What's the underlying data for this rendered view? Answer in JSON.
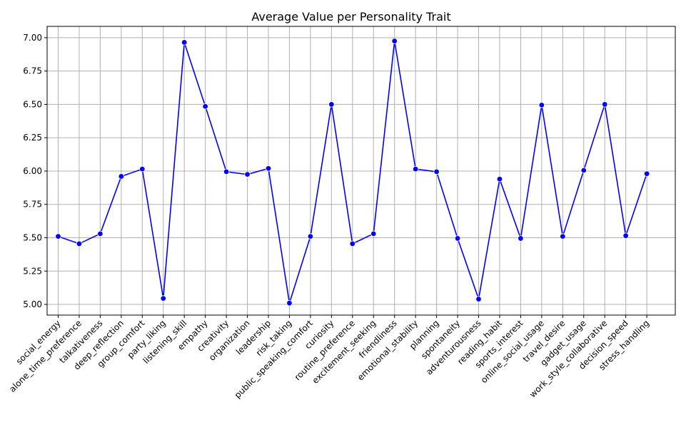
{
  "chart_data": {
    "type": "line",
    "title": "Average Value per Personality Trait",
    "xlabel": "",
    "ylabel": "",
    "grid": true,
    "ylim": [
      4.92,
      7.085
    ],
    "yticks": [
      "5.00",
      "5.25",
      "5.50",
      "5.75",
      "6.00",
      "6.25",
      "6.50",
      "6.75",
      "7.00"
    ],
    "line_color": "#0000ff",
    "categories": [
      "social_energy",
      "alone_time_preference",
      "talkativeness",
      "deep_reflection",
      "group_comfort",
      "party_liking",
      "listening_skill",
      "empathy",
      "creativity",
      "organization",
      "leadership",
      "risk_taking",
      "public_speaking_comfort",
      "curiosity",
      "routine_preference",
      "excitement_seeking",
      "friendliness",
      "emotional_stability",
      "planning",
      "spontaneity",
      "adventurousness",
      "reading_habit",
      "sports_interest",
      "online_social_usage",
      "travel_desire",
      "gadget_usage",
      "work_style_collaborative",
      "decision_speed",
      "stress_handling"
    ],
    "values": [
      5.51,
      5.455,
      5.53,
      5.96,
      6.015,
      5.045,
      6.965,
      6.485,
      5.995,
      5.975,
      6.02,
      5.01,
      5.51,
      6.5,
      5.455,
      5.53,
      6.975,
      6.015,
      5.995,
      5.495,
      5.04,
      5.94,
      5.495,
      6.495,
      5.51,
      6.005,
      6.5,
      5.515,
      5.98
    ]
  }
}
